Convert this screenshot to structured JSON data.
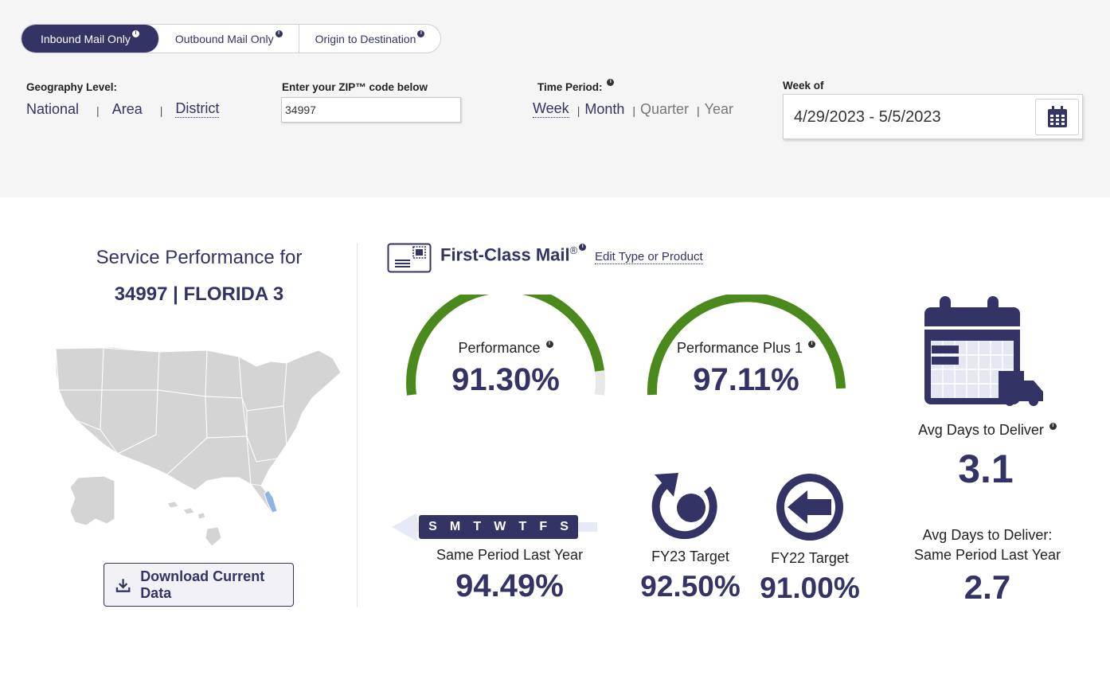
{
  "tabs": [
    {
      "label": "Inbound Mail Only",
      "active": true
    },
    {
      "label": "Outbound Mail Only",
      "active": false
    },
    {
      "label": "Origin to Destination",
      "active": false
    }
  ],
  "geography": {
    "label": "Geography Level:",
    "options": [
      "National",
      "Area",
      "District"
    ],
    "selected": "District"
  },
  "zip": {
    "label": "Enter your ZIP™ code below",
    "value": "34997"
  },
  "time_period": {
    "label": "Time Period:",
    "options": [
      "Week",
      "Month",
      "Quarter",
      "Year"
    ],
    "selected": "Week"
  },
  "week_of": {
    "label": "Week of",
    "value": "4/29/2023 - 5/5/2023"
  },
  "summary": {
    "title": "Service Performance for",
    "location": "34997 | FLORIDA 3",
    "download_label": "Download Current Data"
  },
  "product": {
    "name": "First-Class Mail",
    "reg": "®",
    "edit_label": "Edit Type or Product"
  },
  "metrics": {
    "performance": {
      "label": "Performance",
      "value": "91.30%"
    },
    "performance_plus1": {
      "label": "Performance Plus 1",
      "value": "97.11%"
    },
    "avg_days": {
      "label": "Avg Days to Deliver",
      "value": "3.1"
    },
    "same_period": {
      "label": "Same Period Last Year",
      "value": "94.49%",
      "days": [
        "S",
        "M",
        "T",
        "W",
        "T",
        "F",
        "S"
      ]
    },
    "fy23": {
      "label": "FY23 Target",
      "value": "92.50%"
    },
    "fy22": {
      "label": "FY22 Target",
      "value": "91.00%"
    },
    "avg_days_last_year": {
      "label_line1": "Avg Days to Deliver:",
      "label_line2": "Same Period Last Year",
      "value": "2.7"
    }
  },
  "colors": {
    "navy": "#333366",
    "gauge_green": "#4a8a1c",
    "page_bg": "#f5f5f5"
  }
}
